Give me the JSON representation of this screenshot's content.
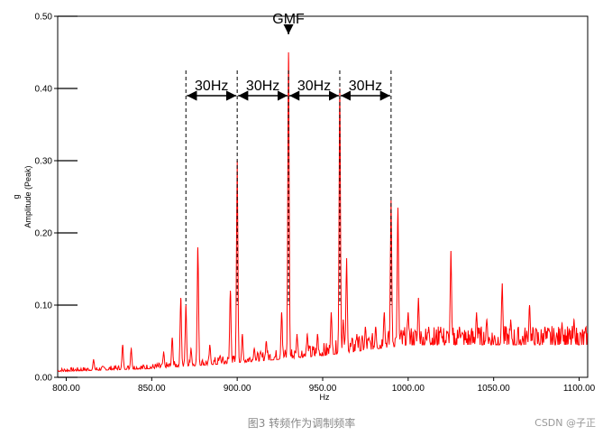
{
  "chart_data": {
    "type": "line",
    "xlabel": "Hz",
    "ylabel": "Amplitude (Peak)",
    "yunit": "g",
    "xlim": [
      795,
      1105
    ],
    "ylim": [
      0,
      0.5
    ],
    "x_ticks": [
      800,
      850,
      900,
      950,
      1000,
      1050,
      1100
    ],
    "x_tick_labels": [
      "800.00",
      "850.00",
      "900.00",
      "950.00",
      "1000.00",
      "1050.00",
      "1100.00"
    ],
    "y_ticks": [
      0,
      0.1,
      0.2,
      0.3,
      0.4,
      0.5
    ],
    "y_tick_labels": [
      "0.00",
      "0.10",
      "0.20",
      "0.30",
      "0.40",
      "0.50"
    ],
    "grid": false,
    "series": [
      {
        "color": "#ff0000",
        "baseline": [
          [
            795,
            0.008
          ],
          [
            850,
            0.012
          ],
          [
            900,
            0.02
          ],
          [
            950,
            0.03
          ],
          [
            1000,
            0.045
          ],
          [
            1050,
            0.045
          ],
          [
            1105,
            0.045
          ]
        ],
        "peaks": [
          {
            "x": 816,
            "y": 0.025
          },
          {
            "x": 833,
            "y": 0.045
          },
          {
            "x": 838,
            "y": 0.04
          },
          {
            "x": 857,
            "y": 0.035
          },
          {
            "x": 862,
            "y": 0.055
          },
          {
            "x": 867,
            "y": 0.11
          },
          {
            "x": 870,
            "y": 0.1
          },
          {
            "x": 873,
            "y": 0.04
          },
          {
            "x": 877,
            "y": 0.18
          },
          {
            "x": 884,
            "y": 0.045
          },
          {
            "x": 890,
            "y": 0.03
          },
          {
            "x": 896,
            "y": 0.12
          },
          {
            "x": 900,
            "y": 0.3
          },
          {
            "x": 903,
            "y": 0.06
          },
          {
            "x": 910,
            "y": 0.04
          },
          {
            "x": 917,
            "y": 0.05
          },
          {
            "x": 926,
            "y": 0.09
          },
          {
            "x": 930,
            "y": 0.45
          },
          {
            "x": 935,
            "y": 0.06
          },
          {
            "x": 941,
            "y": 0.06
          },
          {
            "x": 947,
            "y": 0.06
          },
          {
            "x": 955,
            "y": 0.09
          },
          {
            "x": 960,
            "y": 0.4
          },
          {
            "x": 962,
            "y": 0.08
          },
          {
            "x": 964,
            "y": 0.165
          },
          {
            "x": 970,
            "y": 0.06
          },
          {
            "x": 975,
            "y": 0.07
          },
          {
            "x": 981,
            "y": 0.07
          },
          {
            "x": 986,
            "y": 0.09
          },
          {
            "x": 990,
            "y": 0.245
          },
          {
            "x": 994,
            "y": 0.235
          },
          {
            "x": 1000,
            "y": 0.09
          },
          {
            "x": 1006,
            "y": 0.11
          },
          {
            "x": 1012,
            "y": 0.07
          },
          {
            "x": 1019,
            "y": 0.07
          },
          {
            "x": 1025,
            "y": 0.175
          },
          {
            "x": 1030,
            "y": 0.07
          },
          {
            "x": 1040,
            "y": 0.09
          },
          {
            "x": 1046,
            "y": 0.08
          },
          {
            "x": 1055,
            "y": 0.13
          },
          {
            "x": 1060,
            "y": 0.08
          },
          {
            "x": 1071,
            "y": 0.1
          },
          {
            "x": 1080,
            "y": 0.07
          },
          {
            "x": 1090,
            "y": 0.075
          },
          {
            "x": 1097,
            "y": 0.08
          }
        ]
      }
    ],
    "annotations": {
      "gmf": {
        "label": "GMF",
        "x": 930,
        "arrow_tip_y": 0.475,
        "label_y": 0.49
      },
      "divider_lines": [
        870,
        900,
        930,
        960,
        990
      ],
      "spans": [
        {
          "from": 870,
          "to": 900,
          "label": "30Hz"
        },
        {
          "from": 900,
          "to": 930,
          "label": "30Hz"
        },
        {
          "from": 930,
          "to": 960,
          "label": "30Hz"
        },
        {
          "from": 960,
          "to": 990,
          "label": "30Hz"
        }
      ],
      "span_arrow_y": 0.39
    }
  },
  "caption": "图3 转频作为调制频率",
  "watermark": "CSDN @子正"
}
